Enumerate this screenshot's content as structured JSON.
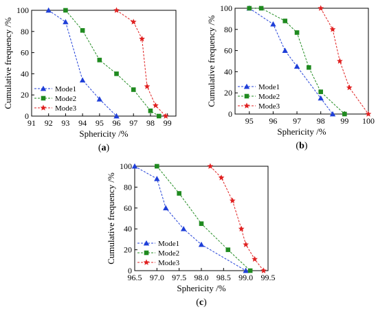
{
  "chart_data": [
    {
      "type": "line",
      "panel_label": "a",
      "xlabel": "Sphericity /%",
      "ylabel": "Cumulative frequency /%",
      "xlim": [
        91,
        99.5
      ],
      "ylim": [
        0,
        100
      ],
      "xticks": [
        91,
        92,
        93,
        94,
        95,
        96,
        97,
        98,
        99
      ],
      "yticks": [
        0,
        20,
        40,
        60,
        80,
        100
      ],
      "legend_position": "bottom-left",
      "series": [
        {
          "name": "Mode1",
          "color": "#1f3fd8",
          "marker": "triangle",
          "x": [
            92.0,
            93.0,
            94.0,
            95.0,
            96.0
          ],
          "y": [
            100,
            89,
            34,
            16,
            0
          ]
        },
        {
          "name": "Mode2",
          "color": "#1f8a1f",
          "marker": "square",
          "x": [
            93.0,
            94.0,
            95.0,
            96.0,
            97.0,
            98.0,
            98.5
          ],
          "y": [
            100,
            81,
            53,
            40,
            25,
            5,
            0
          ]
        },
        {
          "name": "Mode3",
          "color": "#e02020",
          "marker": "star",
          "x": [
            96.0,
            97.0,
            97.5,
            97.8,
            98.3,
            98.9
          ],
          "y": [
            100,
            89,
            73,
            28,
            10,
            0
          ]
        }
      ]
    },
    {
      "type": "line",
      "panel_label": "b",
      "xlabel": "Sphericity /%",
      "ylabel": "Cumulative frequency /%",
      "xlim": [
        94.4,
        100
      ],
      "ylim": [
        0,
        100
      ],
      "xticks": [
        95,
        96,
        97,
        98,
        99,
        100
      ],
      "yticks": [
        0,
        20,
        40,
        60,
        80,
        100
      ],
      "legend_position": "bottom-left",
      "series": [
        {
          "name": "Mode1",
          "color": "#1f3fd8",
          "marker": "triangle",
          "x": [
            95.0,
            96.0,
            96.5,
            97.0,
            98.0,
            98.5
          ],
          "y": [
            100,
            85,
            60,
            45,
            15,
            0
          ]
        },
        {
          "name": "Mode2",
          "color": "#1f8a1f",
          "marker": "square",
          "x": [
            95.0,
            95.5,
            96.5,
            97.0,
            97.5,
            98.0,
            99.0
          ],
          "y": [
            100,
            100,
            88,
            77,
            44,
            21,
            0
          ]
        },
        {
          "name": "Mode3",
          "color": "#e02020",
          "marker": "star",
          "x": [
            98.0,
            98.5,
            98.8,
            99.2,
            100.0
          ],
          "y": [
            100,
            80,
            50,
            25,
            0
          ]
        }
      ]
    },
    {
      "type": "line",
      "panel_label": "c",
      "xlabel": "Sphericity /%",
      "ylabel": "Cumulative frequency /%",
      "xlim": [
        96.5,
        99.5
      ],
      "ylim": [
        0,
        100
      ],
      "xticks": [
        96.5,
        97.0,
        97.5,
        98.0,
        98.5,
        99.0,
        99.5
      ],
      "xtick_labels": [
        "96.5",
        "97.0",
        "97.5",
        "98.0",
        "98.5",
        "99.0",
        "99.5"
      ],
      "yticks": [
        0,
        20,
        40,
        60,
        80,
        100
      ],
      "legend_position": "bottom-left",
      "series": [
        {
          "name": "Mode1",
          "color": "#1f3fd8",
          "marker": "triangle",
          "x": [
            96.5,
            97.0,
            97.2,
            97.6,
            98.0,
            99.0
          ],
          "y": [
            100,
            88,
            60,
            40,
            25,
            0
          ]
        },
        {
          "name": "Mode2",
          "color": "#1f8a1f",
          "marker": "square",
          "x": [
            97.0,
            97.5,
            98.0,
            98.6,
            99.1
          ],
          "y": [
            100,
            74,
            45,
            20,
            0
          ]
        },
        {
          "name": "Mode3",
          "color": "#e02020",
          "marker": "star",
          "x": [
            98.2,
            98.45,
            98.7,
            98.9,
            99.0,
            99.2,
            99.4
          ],
          "y": [
            100,
            89,
            67,
            40,
            25,
            11,
            0
          ]
        }
      ]
    }
  ]
}
